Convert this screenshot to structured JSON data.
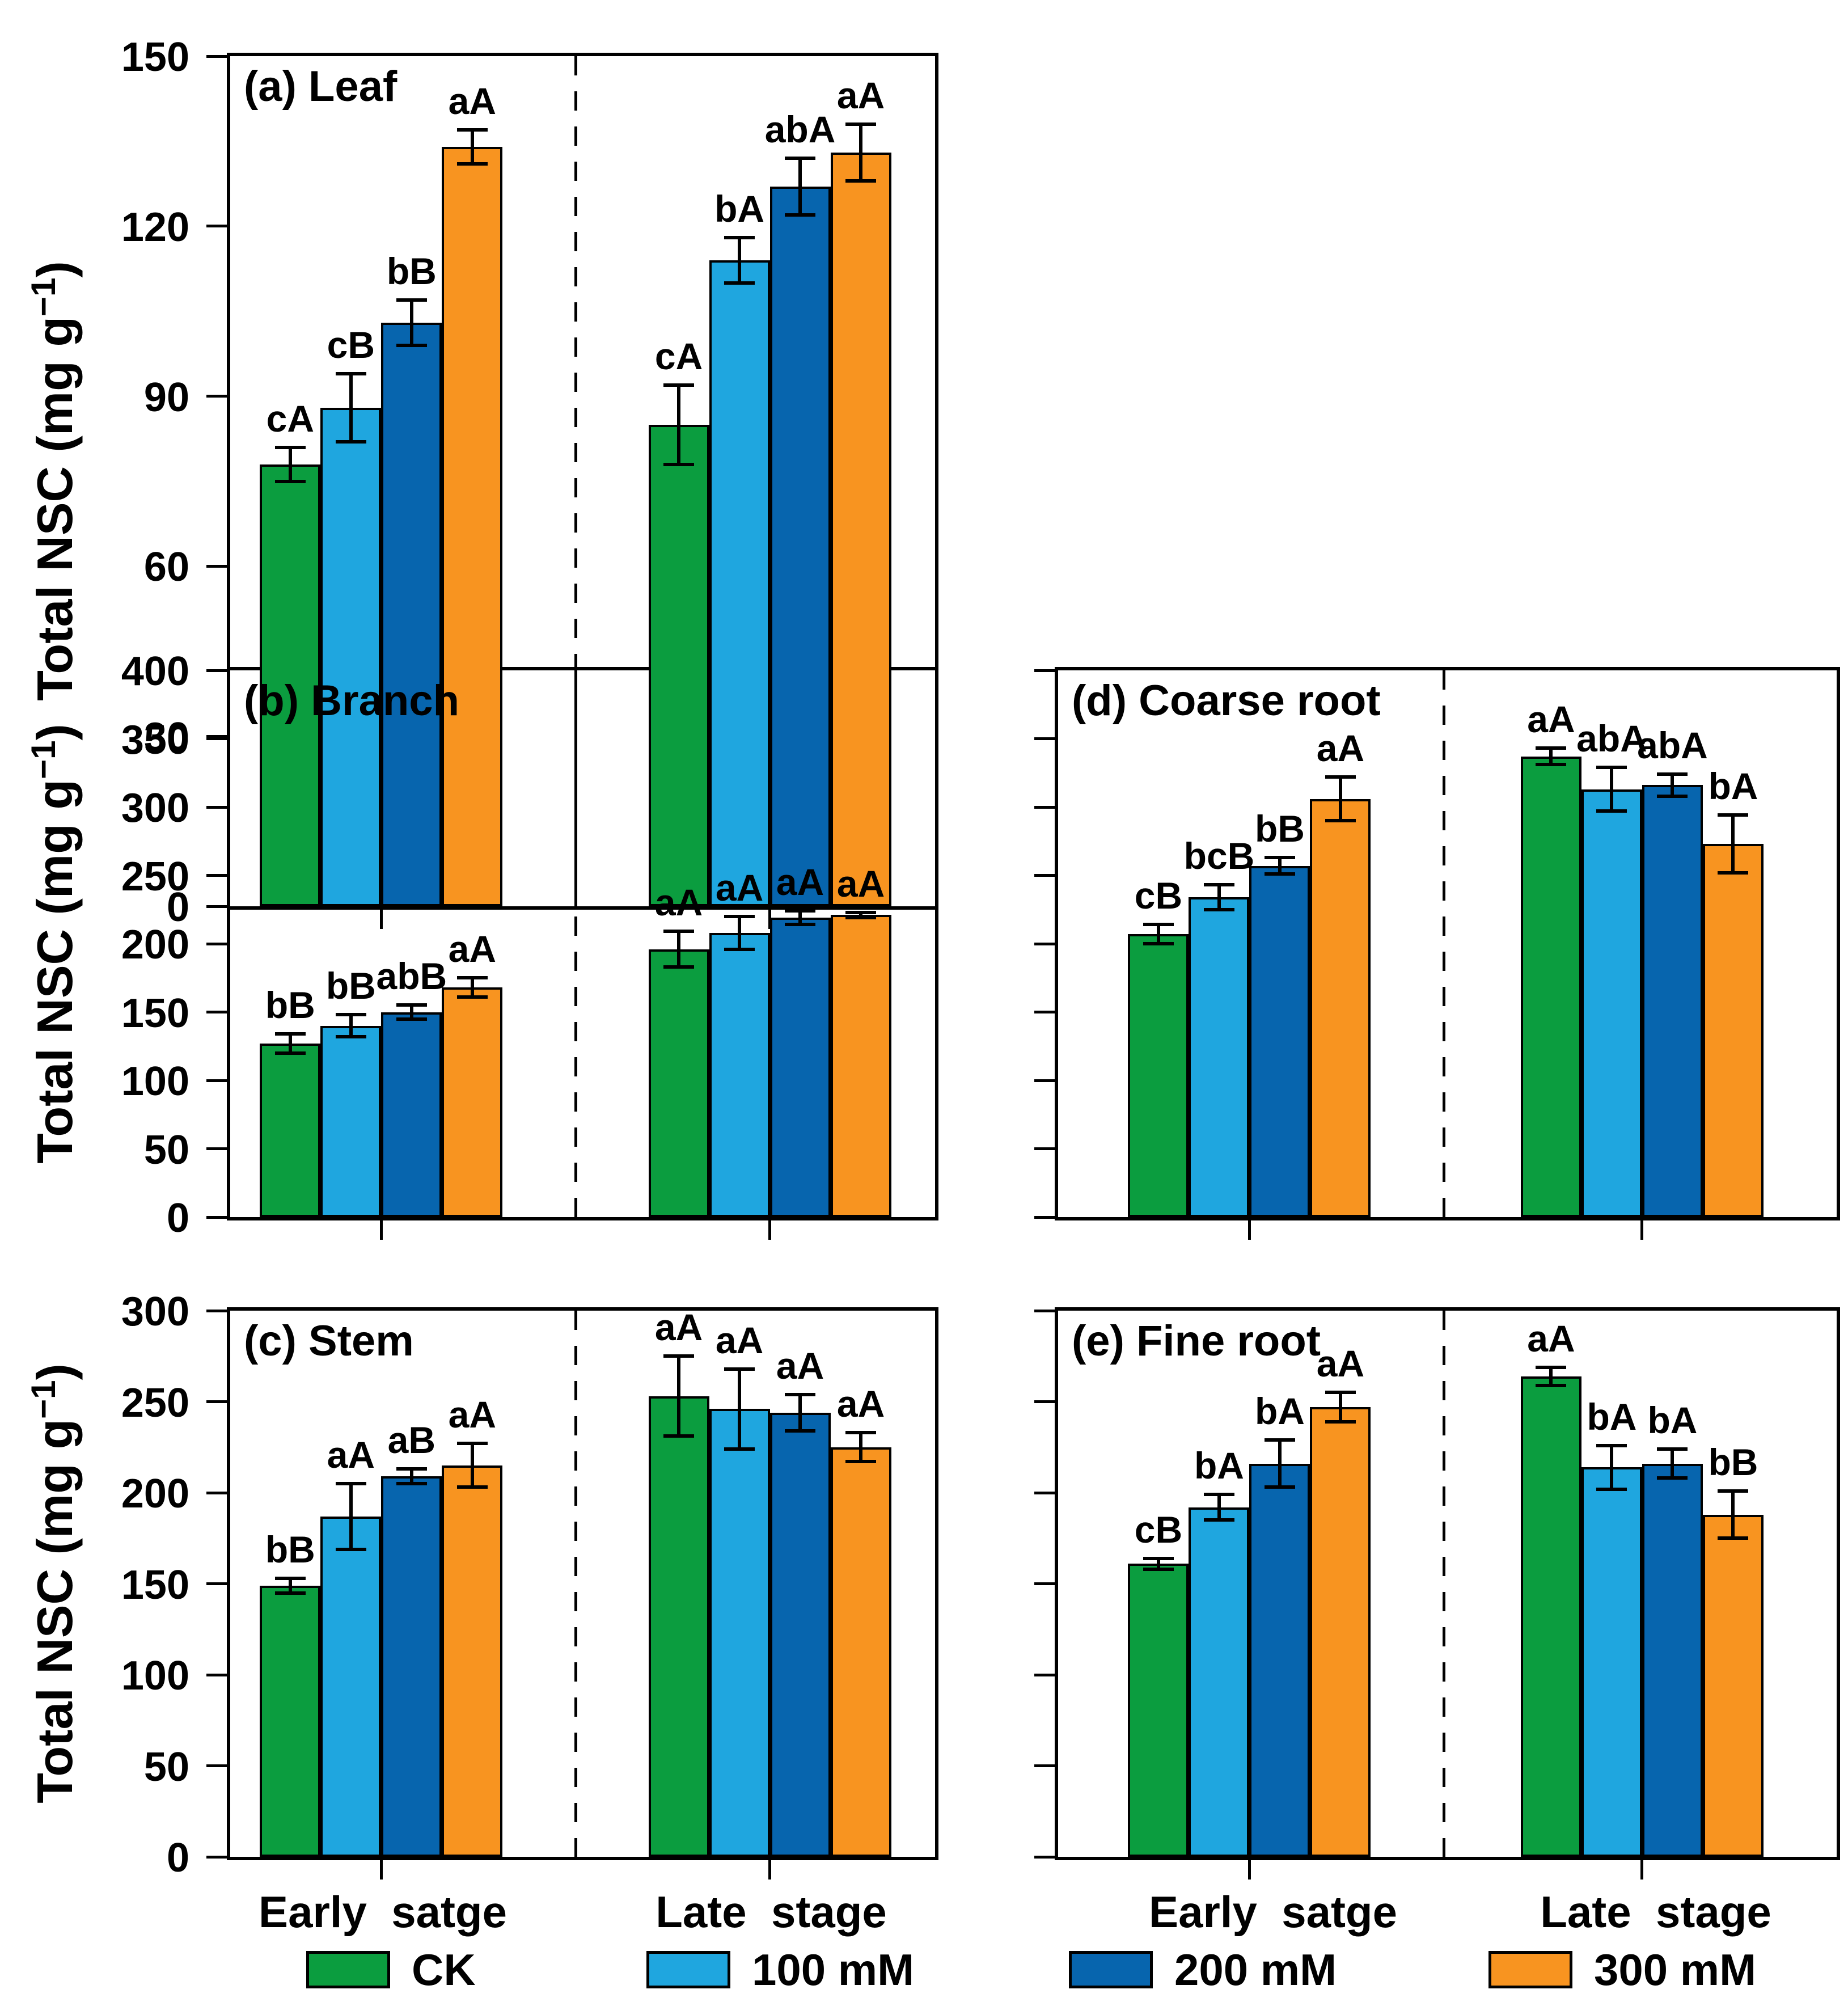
{
  "figure": {
    "ylabel": {
      "text": "Total NSC (mg g",
      "sup": "−1",
      "suffix": ")"
    },
    "stage_labels": [
      "Early  satge",
      "Late  stage"
    ]
  },
  "legend": [
    {
      "label": "CK",
      "color": "#0B9D3F"
    },
    {
      "label": "100 mM",
      "color": "#1FA6DF"
    },
    {
      "label": "200 mM",
      "color": "#0765AE"
    },
    {
      "label": "300 mM",
      "color": "#F89420"
    }
  ],
  "chart_data": [
    {
      "id": "a",
      "type": "bar",
      "title": "(a) Leaf",
      "ylabel": "Total NSC (mg g−1)",
      "ylim": [
        0,
        150
      ],
      "yticks": [
        0,
        30,
        60,
        90,
        120,
        150
      ],
      "ytick_labels_shown": true,
      "categories": [
        "Early  satge",
        "Late  stage"
      ],
      "xtick_labels_shown": false,
      "series": [
        {
          "name": "CK",
          "values": [
            78,
            85
          ],
          "errors": [
            3,
            7
          ],
          "letters": [
            "cA",
            "cA"
          ]
        },
        {
          "name": "100 mM",
          "values": [
            88,
            114
          ],
          "errors": [
            6,
            4
          ],
          "letters": [
            "cB",
            "bA"
          ]
        },
        {
          "name": "200 mM",
          "values": [
            103,
            127
          ],
          "errors": [
            4,
            5
          ],
          "letters": [
            "bB",
            "abA"
          ]
        },
        {
          "name": "300 mM",
          "values": [
            134,
            133
          ],
          "errors": [
            3,
            5
          ],
          "letters": [
            "aA",
            "aA"
          ]
        }
      ]
    },
    {
      "id": "b",
      "type": "bar",
      "title": "(b) Branch",
      "ylabel": "Total NSC (mg g−1)",
      "ylim": [
        0,
        400
      ],
      "yticks": [
        0,
        50,
        100,
        150,
        200,
        250,
        300,
        350,
        400
      ],
      "ytick_labels_shown": true,
      "categories": [
        "Early  satge",
        "Late  stage"
      ],
      "xtick_labels_shown": false,
      "series": [
        {
          "name": "CK",
          "values": [
            127,
            196
          ],
          "errors": [
            7,
            13
          ],
          "letters": [
            "bB",
            "aA"
          ]
        },
        {
          "name": "100 mM",
          "values": [
            140,
            208
          ],
          "errors": [
            8,
            12
          ],
          "letters": [
            "bB",
            "aA"
          ]
        },
        {
          "name": "200 mM",
          "values": [
            150,
            219
          ],
          "errors": [
            5,
            5
          ],
          "letters": [
            "abB",
            "aA"
          ]
        },
        {
          "name": "300 mM",
          "values": [
            168,
            221
          ],
          "errors": [
            7,
            2
          ],
          "letters": [
            "aA",
            "aA"
          ]
        }
      ]
    },
    {
      "id": "c",
      "type": "bar",
      "title": "(c) Stem",
      "ylabel": "Total NSC (mg g−1)",
      "ylim": [
        0,
        300
      ],
      "yticks": [
        0,
        50,
        100,
        150,
        200,
        250,
        300
      ],
      "ytick_labels_shown": true,
      "categories": [
        "Early  satge",
        "Late  stage"
      ],
      "xtick_labels_shown": true,
      "series": [
        {
          "name": "CK",
          "values": [
            149,
            253
          ],
          "errors": [
            4,
            22
          ],
          "letters": [
            "bB",
            "aA"
          ]
        },
        {
          "name": "100 mM",
          "values": [
            187,
            246
          ],
          "errors": [
            18,
            22
          ],
          "letters": [
            "aA",
            "aA"
          ]
        },
        {
          "name": "200 mM",
          "values": [
            209,
            244
          ],
          "errors": [
            4,
            10
          ],
          "letters": [
            "aB",
            "aA"
          ]
        },
        {
          "name": "300 mM",
          "values": [
            215,
            225
          ],
          "errors": [
            12,
            8
          ],
          "letters": [
            "aA",
            "aA"
          ]
        }
      ]
    },
    {
      "id": "d",
      "type": "bar",
      "title": "(d) Coarse root",
      "ylabel": "",
      "ylim": [
        0,
        400
      ],
      "yticks": [
        0,
        50,
        100,
        150,
        200,
        250,
        300,
        350,
        400
      ],
      "ytick_labels_shown": false,
      "categories": [
        "Early  satge",
        "Late  stage"
      ],
      "xtick_labels_shown": false,
      "series": [
        {
          "name": "CK",
          "values": [
            207,
            337
          ],
          "errors": [
            7,
            6
          ],
          "letters": [
            "cB",
            "aA"
          ]
        },
        {
          "name": "100 mM",
          "values": [
            234,
            313
          ],
          "errors": [
            9,
            16
          ],
          "letters": [
            "bcB",
            "abA"
          ]
        },
        {
          "name": "200 mM",
          "values": [
            257,
            316
          ],
          "errors": [
            6,
            8
          ],
          "letters": [
            "bB",
            "abA"
          ]
        },
        {
          "name": "300 mM",
          "values": [
            306,
            273
          ],
          "errors": [
            16,
            21
          ],
          "letters": [
            "aA",
            "bA"
          ]
        }
      ]
    },
    {
      "id": "e",
      "type": "bar",
      "title": "(e) Fine root",
      "ylabel": "",
      "ylim": [
        0,
        300
      ],
      "yticks": [
        0,
        50,
        100,
        150,
        200,
        250,
        300
      ],
      "ytick_labels_shown": false,
      "categories": [
        "Early  satge",
        "Late  stage"
      ],
      "xtick_labels_shown": true,
      "series": [
        {
          "name": "CK",
          "values": [
            161,
            264
          ],
          "errors": [
            3,
            5
          ],
          "letters": [
            "cB",
            "aA"
          ]
        },
        {
          "name": "100 mM",
          "values": [
            192,
            214
          ],
          "errors": [
            7,
            12
          ],
          "letters": [
            "bA",
            "bA"
          ]
        },
        {
          "name": "200 mM",
          "values": [
            216,
            216
          ],
          "errors": [
            13,
            8
          ],
          "letters": [
            "bA",
            "bA"
          ]
        },
        {
          "name": "300 mM",
          "values": [
            247,
            188
          ],
          "errors": [
            8,
            13
          ],
          "letters": [
            "aA",
            "bB"
          ]
        }
      ]
    }
  ]
}
